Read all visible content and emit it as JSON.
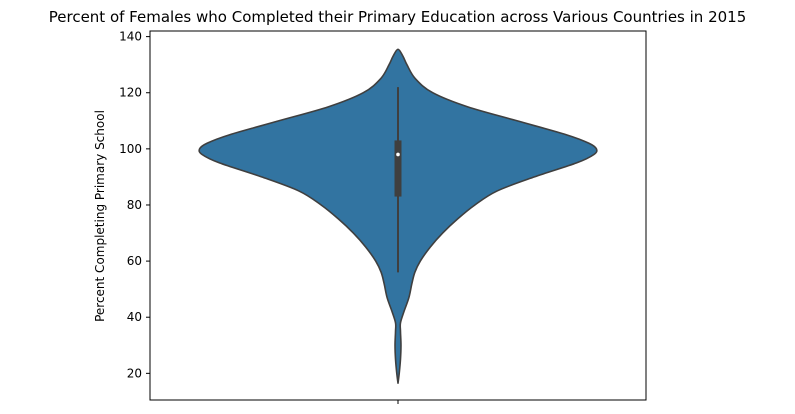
{
  "chart_data": {
    "type": "violin",
    "title": "Percent of Females who Completed their Primary Education across Various Countries in 2015",
    "xlabel": "",
    "ylabel": "Percent Completing Primary School",
    "ylim": [
      10.5,
      142
    ],
    "yticks": [
      20,
      40,
      60,
      80,
      100,
      120,
      140
    ],
    "grid": false,
    "color": "#3274a1",
    "edge_color": "#3f3f3f",
    "density_profile": [
      {
        "y": 16.5,
        "half_width_pct": 0
      },
      {
        "y": 20,
        "half_width_pct": 0.25
      },
      {
        "y": 25,
        "half_width_pct": 0.5
      },
      {
        "y": 30,
        "half_width_pct": 0.6
      },
      {
        "y": 35,
        "half_width_pct": 0.5
      },
      {
        "y": 38,
        "half_width_pct": 0.5
      },
      {
        "y": 42,
        "half_width_pct": 1.2
      },
      {
        "y": 47,
        "half_width_pct": 2.2
      },
      {
        "y": 52,
        "half_width_pct": 2.8
      },
      {
        "y": 56,
        "half_width_pct": 3.4
      },
      {
        "y": 60,
        "half_width_pct": 4.5
      },
      {
        "y": 65,
        "half_width_pct": 6.5
      },
      {
        "y": 70,
        "half_width_pct": 9
      },
      {
        "y": 75,
        "half_width_pct": 12
      },
      {
        "y": 80,
        "half_width_pct": 15.5
      },
      {
        "y": 85,
        "half_width_pct": 20
      },
      {
        "y": 90,
        "half_width_pct": 27.5
      },
      {
        "y": 95,
        "half_width_pct": 36
      },
      {
        "y": 98,
        "half_width_pct": 39.5
      },
      {
        "y": 100,
        "half_width_pct": 40
      },
      {
        "y": 102,
        "half_width_pct": 38.5
      },
      {
        "y": 105,
        "half_width_pct": 34
      },
      {
        "y": 110,
        "half_width_pct": 24
      },
      {
        "y": 115,
        "half_width_pct": 14
      },
      {
        "y": 120,
        "half_width_pct": 7
      },
      {
        "y": 125,
        "half_width_pct": 3.5
      },
      {
        "y": 130,
        "half_width_pct": 1.8
      },
      {
        "y": 133,
        "half_width_pct": 1
      },
      {
        "y": 135.5,
        "half_width_pct": 0
      }
    ],
    "box": {
      "whisker_low": 56,
      "q1": 83,
      "median": 98,
      "q3": 103,
      "whisker_high": 122
    }
  }
}
